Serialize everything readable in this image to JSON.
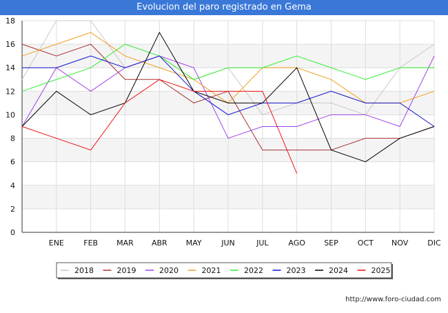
{
  "page": {
    "footer_url": "http://www.foro-ciudad.com"
  },
  "chart_data": {
    "type": "line",
    "title": "Evolucion del paro registrado en Gema",
    "xlabel": "",
    "ylabel": "",
    "categories": [
      "",
      "ENE",
      "FEB",
      "MAR",
      "ABR",
      "MAY",
      "JUN",
      "JUL",
      "AGO",
      "SEP",
      "OCT",
      "NOV",
      "DIC"
    ],
    "ylim": [
      0,
      18
    ],
    "yticks": [
      0,
      2,
      4,
      6,
      8,
      10,
      12,
      14,
      16,
      18
    ],
    "grid": true,
    "legend_position": "bottom",
    "series": [
      {
        "name": "2018",
        "color": "#c8c8c8",
        "values": [
          13,
          18,
          18,
          14,
          15,
          13,
          14,
          10,
          11,
          11,
          10,
          14,
          16
        ]
      },
      {
        "name": "2019",
        "color": "#a83232",
        "values": [
          16,
          15,
          16,
          13,
          13,
          11,
          12,
          7,
          7,
          7,
          8,
          8,
          9
        ]
      },
      {
        "name": "2020",
        "color": "#a040e8",
        "values": [
          9,
          14,
          12,
          14,
          15,
          14,
          8,
          9,
          9,
          10,
          10,
          9,
          15
        ]
      },
      {
        "name": "2021",
        "color": "#f0a020",
        "values": [
          15,
          16,
          17,
          15,
          14,
          13,
          11,
          14,
          14,
          13,
          11,
          11,
          12
        ]
      },
      {
        "name": "2022",
        "color": "#33ee33",
        "values": [
          12,
          13,
          14,
          16,
          15,
          13,
          14,
          14,
          15,
          14,
          13,
          14,
          14
        ]
      },
      {
        "name": "2023",
        "color": "#1010cc",
        "values": [
          14,
          14,
          15,
          14,
          15,
          12,
          10,
          11,
          11,
          12,
          11,
          11,
          9
        ]
      },
      {
        "name": "2024",
        "color": "#000000",
        "values": [
          9,
          12,
          10,
          11,
          17,
          12,
          11,
          11,
          14,
          7,
          6,
          8,
          9
        ]
      },
      {
        "name": "2025",
        "color": "#ee1111",
        "values": [
          9,
          8,
          7,
          11,
          13,
          12,
          12,
          12,
          5,
          null,
          null,
          null,
          null
        ]
      }
    ]
  }
}
